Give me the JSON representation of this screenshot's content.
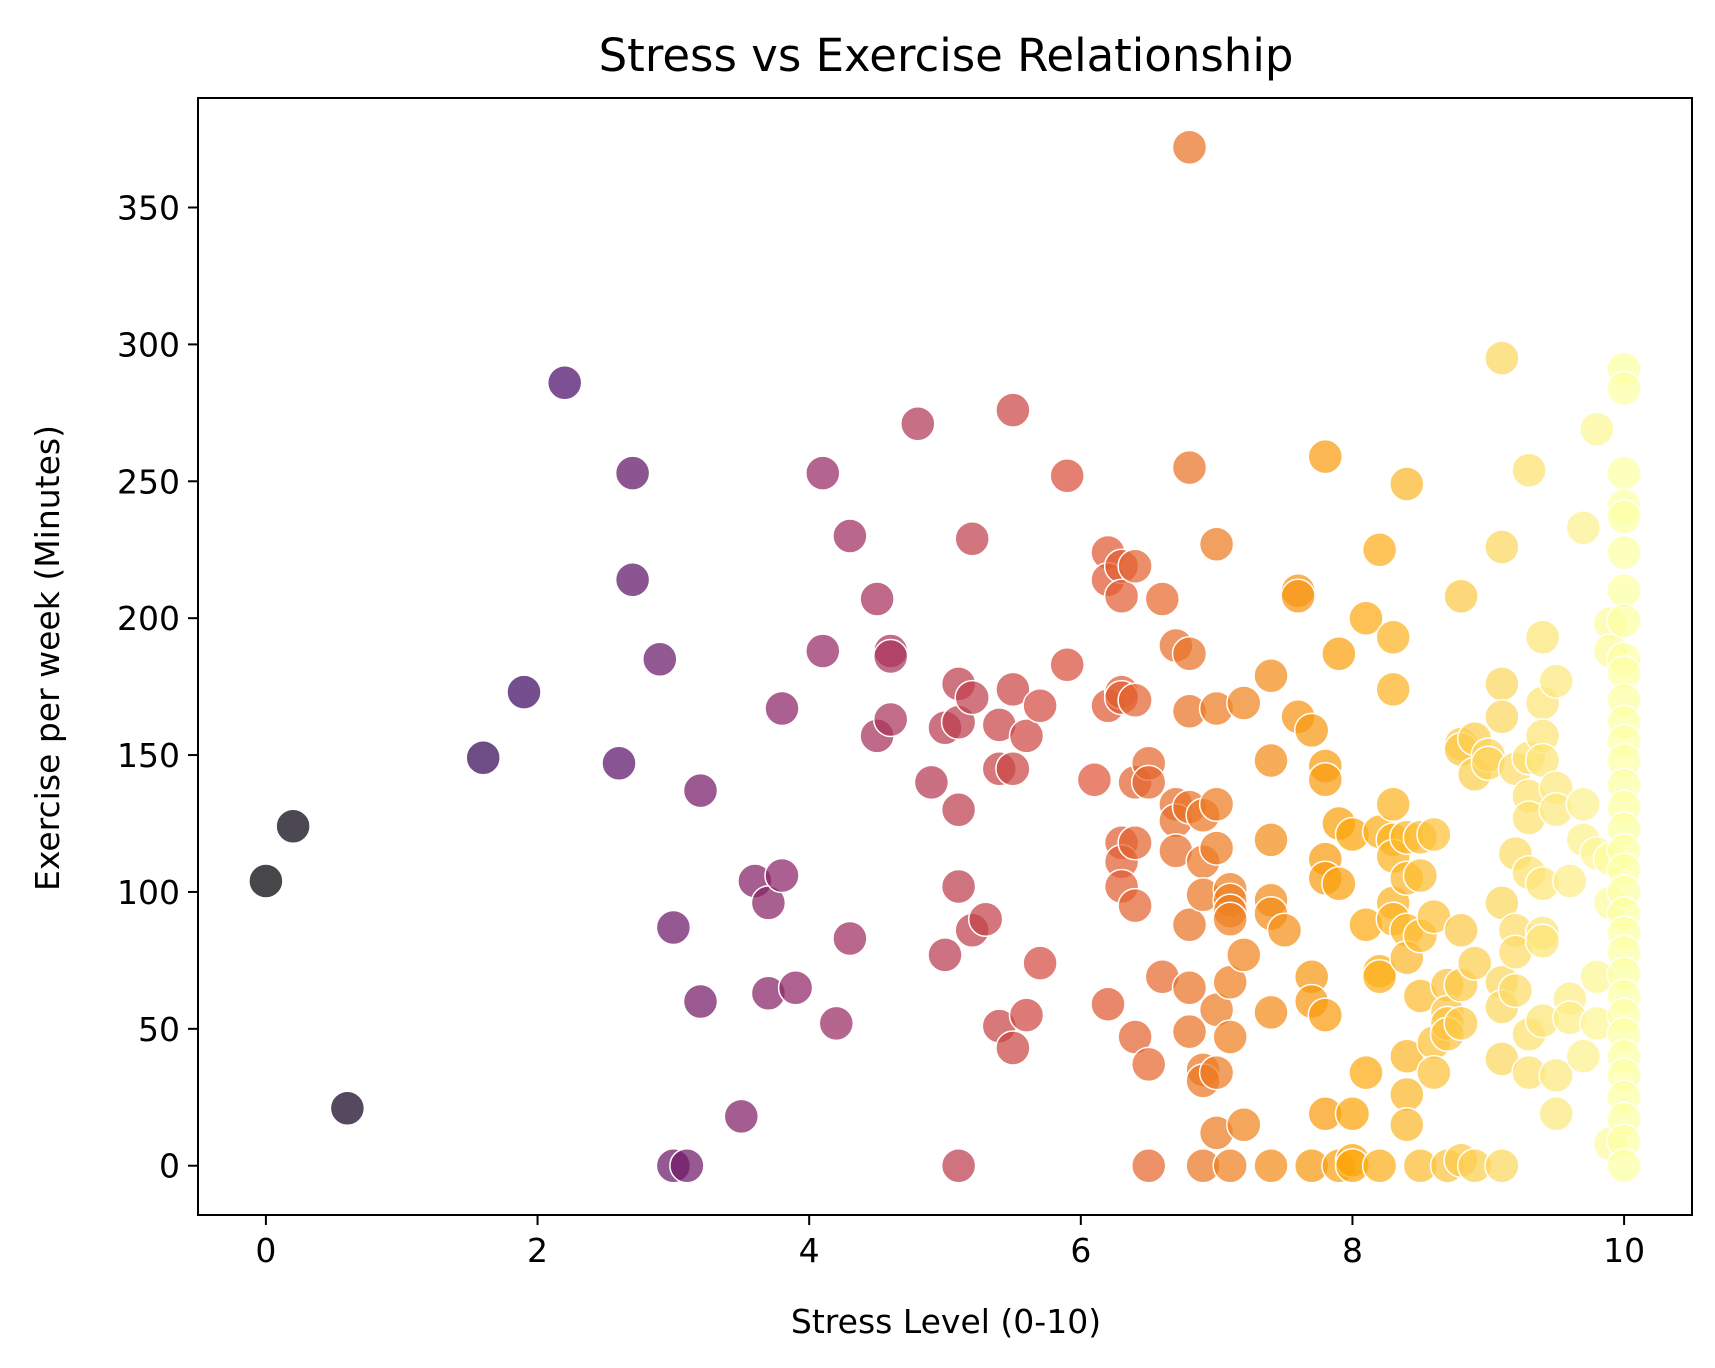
{
  "chart_data": {
    "type": "scatter",
    "title": "Stress vs Exercise Relationship",
    "xlabel": "Stress Level (0-10)",
    "ylabel": "Exercise per week (Minutes)",
    "xlim": [
      -0.5,
      10.5
    ],
    "ylim": [
      -18,
      390
    ],
    "xticks": [
      0,
      2,
      4,
      6,
      8,
      10
    ],
    "yticks": [
      0,
      50,
      100,
      150,
      200,
      250,
      300,
      350
    ],
    "grid": false,
    "legend": "none",
    "colormap": "inferno (color by stress level)",
    "colors": [
      "#000004",
      "#420a68",
      "#932667",
      "#dd513a",
      "#fca50a",
      "#fcffa4"
    ],
    "points": [
      [
        0,
        104
      ],
      [
        0.2,
        124
      ],
      [
        0.6,
        21
      ],
      [
        1.6,
        149
      ],
      [
        1.9,
        173
      ],
      [
        2.2,
        286
      ],
      [
        2.6,
        147
      ],
      [
        2.7,
        253
      ],
      [
        2.7,
        214
      ],
      [
        2.9,
        185
      ],
      [
        3.0,
        87
      ],
      [
        3.0,
        0
      ],
      [
        3.1,
        0
      ],
      [
        3.2,
        137
      ],
      [
        3.2,
        60
      ],
      [
        3.5,
        18
      ],
      [
        3.6,
        104
      ],
      [
        3.7,
        96
      ],
      [
        3.7,
        63
      ],
      [
        3.8,
        167
      ],
      [
        3.8,
        106
      ],
      [
        3.9,
        65
      ],
      [
        4.1,
        253
      ],
      [
        4.1,
        188
      ],
      [
        4.2,
        52
      ],
      [
        4.3,
        230
      ],
      [
        4.3,
        83
      ],
      [
        4.5,
        207
      ],
      [
        4.5,
        157
      ],
      [
        4.6,
        188
      ],
      [
        4.6,
        186
      ],
      [
        4.6,
        163
      ],
      [
        4.8,
        271
      ],
      [
        4.9,
        140
      ],
      [
        5.0,
        160
      ],
      [
        5.0,
        77
      ],
      [
        5.1,
        176
      ],
      [
        5.1,
        162
      ],
      [
        5.1,
        130
      ],
      [
        5.1,
        102
      ],
      [
        5.1,
        0
      ],
      [
        5.2,
        229
      ],
      [
        5.2,
        171
      ],
      [
        5.2,
        86
      ],
      [
        5.3,
        90
      ],
      [
        5.4,
        161
      ],
      [
        5.4,
        145
      ],
      [
        5.4,
        51
      ],
      [
        5.5,
        276
      ],
      [
        5.5,
        174
      ],
      [
        5.5,
        145
      ],
      [
        5.5,
        43
      ],
      [
        5.6,
        157
      ],
      [
        5.6,
        55
      ],
      [
        5.7,
        168
      ],
      [
        5.7,
        74
      ],
      [
        5.9,
        252
      ],
      [
        5.9,
        183
      ],
      [
        6.1,
        141
      ],
      [
        6.2,
        224
      ],
      [
        6.2,
        214
      ],
      [
        6.2,
        168
      ],
      [
        6.2,
        59
      ],
      [
        6.3,
        219
      ],
      [
        6.3,
        208
      ],
      [
        6.3,
        173
      ],
      [
        6.3,
        171
      ],
      [
        6.3,
        118
      ],
      [
        6.3,
        111
      ],
      [
        6.3,
        102
      ],
      [
        6.4,
        219
      ],
      [
        6.4,
        170
      ],
      [
        6.4,
        140
      ],
      [
        6.4,
        118
      ],
      [
        6.4,
        95
      ],
      [
        6.4,
        47
      ],
      [
        6.5,
        147
      ],
      [
        6.5,
        140
      ],
      [
        6.5,
        37
      ],
      [
        6.5,
        0
      ],
      [
        6.6,
        207
      ],
      [
        6.6,
        69
      ],
      [
        6.7,
        190
      ],
      [
        6.7,
        132
      ],
      [
        6.7,
        126
      ],
      [
        6.7,
        115
      ],
      [
        6.8,
        372
      ],
      [
        6.8,
        255
      ],
      [
        6.8,
        187
      ],
      [
        6.8,
        166
      ],
      [
        6.8,
        131
      ],
      [
        6.8,
        88
      ],
      [
        6.8,
        65
      ],
      [
        6.8,
        49
      ],
      [
        6.9,
        128
      ],
      [
        6.9,
        111
      ],
      [
        6.9,
        99
      ],
      [
        6.9,
        35
      ],
      [
        6.9,
        31
      ],
      [
        6.9,
        0
      ],
      [
        7.0,
        227
      ],
      [
        7.0,
        167
      ],
      [
        7.0,
        132
      ],
      [
        7.0,
        116
      ],
      [
        7.0,
        57
      ],
      [
        7.0,
        34
      ],
      [
        7.0,
        12
      ],
      [
        7.1,
        101
      ],
      [
        7.1,
        97
      ],
      [
        7.1,
        93
      ],
      [
        7.1,
        90
      ],
      [
        7.1,
        67
      ],
      [
        7.1,
        47
      ],
      [
        7.1,
        0
      ],
      [
        7.2,
        169
      ],
      [
        7.2,
        77
      ],
      [
        7.2,
        15
      ],
      [
        7.4,
        179
      ],
      [
        7.4,
        148
      ],
      [
        7.4,
        119
      ],
      [
        7.4,
        97
      ],
      [
        7.4,
        92
      ],
      [
        7.4,
        56
      ],
      [
        7.4,
        0
      ],
      [
        7.5,
        86
      ],
      [
        7.6,
        210
      ],
      [
        7.6,
        208
      ],
      [
        7.6,
        164
      ],
      [
        7.7,
        159
      ],
      [
        7.7,
        69
      ],
      [
        7.7,
        60
      ],
      [
        7.7,
        0
      ],
      [
        7.8,
        259
      ],
      [
        7.8,
        146
      ],
      [
        7.8,
        141
      ],
      [
        7.8,
        112
      ],
      [
        7.8,
        105
      ],
      [
        7.8,
        55
      ],
      [
        7.8,
        19
      ],
      [
        7.9,
        187
      ],
      [
        7.9,
        125
      ],
      [
        7.9,
        103
      ],
      [
        7.9,
        0
      ],
      [
        8.0,
        121
      ],
      [
        8.0,
        19
      ],
      [
        8.0,
        2
      ],
      [
        8.0,
        0
      ],
      [
        8.1,
        200
      ],
      [
        8.1,
        88
      ],
      [
        8.1,
        34
      ],
      [
        8.2,
        225
      ],
      [
        8.2,
        122
      ],
      [
        8.2,
        71
      ],
      [
        8.2,
        69
      ],
      [
        8.2,
        0
      ],
      [
        8.3,
        193
      ],
      [
        8.3,
        174
      ],
      [
        8.3,
        132
      ],
      [
        8.3,
        119
      ],
      [
        8.3,
        113
      ],
      [
        8.3,
        96
      ],
      [
        8.3,
        90
      ],
      [
        8.4,
        249
      ],
      [
        8.4,
        120
      ],
      [
        8.4,
        105
      ],
      [
        8.4,
        86
      ],
      [
        8.4,
        76
      ],
      [
        8.4,
        40
      ],
      [
        8.4,
        26
      ],
      [
        8.4,
        15
      ],
      [
        8.5,
        120
      ],
      [
        8.5,
        106
      ],
      [
        8.5,
        84
      ],
      [
        8.5,
        62
      ],
      [
        8.5,
        0
      ],
      [
        8.6,
        121
      ],
      [
        8.6,
        91
      ],
      [
        8.6,
        45
      ],
      [
        8.6,
        34
      ],
      [
        8.7,
        66
      ],
      [
        8.7,
        56
      ],
      [
        8.7,
        52
      ],
      [
        8.7,
        48
      ],
      [
        8.7,
        0
      ],
      [
        8.8,
        208
      ],
      [
        8.8,
        154
      ],
      [
        8.8,
        152
      ],
      [
        8.8,
        86
      ],
      [
        8.8,
        66
      ],
      [
        8.8,
        52
      ],
      [
        8.8,
        2
      ],
      [
        8.9,
        156
      ],
      [
        8.9,
        143
      ],
      [
        8.9,
        74
      ],
      [
        8.9,
        0
      ],
      [
        9.0,
        150
      ],
      [
        9.0,
        147
      ],
      [
        9.1,
        295
      ],
      [
        9.1,
        226
      ],
      [
        9.1,
        176
      ],
      [
        9.1,
        164
      ],
      [
        9.1,
        96
      ],
      [
        9.1,
        67
      ],
      [
        9.1,
        58
      ],
      [
        9.1,
        39
      ],
      [
        9.1,
        0
      ],
      [
        9.2,
        145
      ],
      [
        9.2,
        114
      ],
      [
        9.2,
        86
      ],
      [
        9.2,
        78
      ],
      [
        9.2,
        64
      ],
      [
        9.3,
        254
      ],
      [
        9.3,
        149
      ],
      [
        9.3,
        135
      ],
      [
        9.3,
        127
      ],
      [
        9.3,
        107
      ],
      [
        9.3,
        48
      ],
      [
        9.3,
        34
      ],
      [
        9.4,
        193
      ],
      [
        9.4,
        169
      ],
      [
        9.4,
        157
      ],
      [
        9.4,
        148
      ],
      [
        9.4,
        103
      ],
      [
        9.4,
        85
      ],
      [
        9.4,
        82
      ],
      [
        9.4,
        53
      ],
      [
        9.5,
        177
      ],
      [
        9.5,
        138
      ],
      [
        9.5,
        130
      ],
      [
        9.5,
        33
      ],
      [
        9.5,
        19
      ],
      [
        9.6,
        104
      ],
      [
        9.6,
        61
      ],
      [
        9.6,
        54
      ],
      [
        9.7,
        233
      ],
      [
        9.7,
        132
      ],
      [
        9.7,
        119
      ],
      [
        9.7,
        40
      ],
      [
        9.8,
        269
      ],
      [
        9.8,
        114
      ],
      [
        9.8,
        69
      ],
      [
        9.8,
        52
      ],
      [
        9.9,
        198
      ],
      [
        9.9,
        188
      ],
      [
        9.9,
        112
      ],
      [
        9.9,
        96
      ],
      [
        9.9,
        8
      ],
      [
        10.0,
        291
      ],
      [
        10.0,
        284
      ],
      [
        10.0,
        253
      ],
      [
        10.0,
        241
      ],
      [
        10.0,
        237
      ],
      [
        10.0,
        224
      ],
      [
        10.0,
        210
      ],
      [
        10.0,
        199
      ],
      [
        10.0,
        185
      ],
      [
        10.0,
        180
      ],
      [
        10.0,
        170
      ],
      [
        10.0,
        162
      ],
      [
        10.0,
        155
      ],
      [
        10.0,
        148
      ],
      [
        10.0,
        139
      ],
      [
        10.0,
        131
      ],
      [
        10.0,
        123
      ],
      [
        10.0,
        115
      ],
      [
        10.0,
        108
      ],
      [
        10.0,
        100
      ],
      [
        10.0,
        92
      ],
      [
        10.0,
        85
      ],
      [
        10.0,
        78
      ],
      [
        10.0,
        70
      ],
      [
        10.0,
        62
      ],
      [
        10.0,
        55
      ],
      [
        10.0,
        48
      ],
      [
        10.0,
        40
      ],
      [
        10.0,
        33
      ],
      [
        10.0,
        25
      ],
      [
        10.0,
        17
      ],
      [
        10.0,
        9
      ],
      [
        10.0,
        0
      ]
    ]
  }
}
